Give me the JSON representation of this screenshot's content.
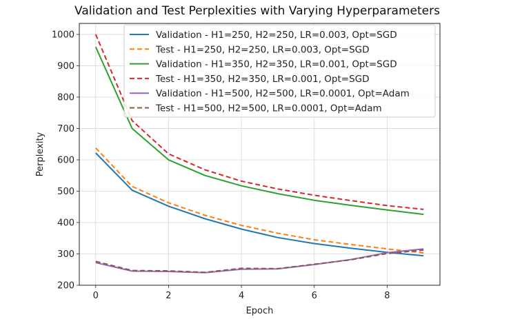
{
  "chart_data": {
    "type": "line",
    "title": "Validation and Test Perplexities with Varying Hyperparameters",
    "xlabel": "Epoch",
    "ylabel": "Perplexity",
    "xlim": [
      -0.45,
      9.45
    ],
    "ylim": [
      200,
      1035
    ],
    "xticks": [
      0,
      2,
      4,
      6,
      8
    ],
    "yticks": [
      200,
      300,
      400,
      500,
      600,
      700,
      800,
      900,
      1000
    ],
    "grid": true,
    "legend_position": "upper-right",
    "x": [
      0,
      1,
      2,
      3,
      4,
      5,
      6,
      7,
      8,
      9
    ],
    "series": [
      {
        "name": "Validation - H1=250, H2=250, LR=0.003, Opt=SGD",
        "color": "#1f77b4",
        "style": "solid",
        "values": [
          622,
          503,
          452,
          412,
          379,
          352,
          333,
          318,
          305,
          294
        ]
      },
      {
        "name": "Test - H1=250, H2=250, LR=0.003, Opt=SGD",
        "color": "#ff7f0e",
        "style": "dashed",
        "values": [
          638,
          515,
          463,
          423,
          391,
          366,
          345,
          330,
          316,
          303
        ]
      },
      {
        "name": "Validation - H1=350, H2=350, LR=0.001, Opt=SGD",
        "color": "#2ca02c",
        "style": "solid",
        "values": [
          960,
          700,
          600,
          550,
          517,
          492,
          471,
          455,
          440,
          426
        ]
      },
      {
        "name": "Test - H1=350, H2=350, LR=0.001, Opt=SGD",
        "color": "#d62728",
        "style": "dashed",
        "values": [
          1000,
          725,
          619,
          568,
          532,
          507,
          487,
          470,
          454,
          442
        ]
      },
      {
        "name": "Validation - H1=500, H2=500, LR=0.0001, Opt=Adam",
        "color": "#9467bd",
        "style": "solid",
        "values": [
          272,
          245,
          244,
          240,
          251,
          252,
          266,
          282,
          304,
          316
        ]
      },
      {
        "name": "Test - H1=500, H2=500, LR=0.0001, Opt=Adam",
        "color": "#8c564b",
        "style": "dashed",
        "values": [
          276,
          247,
          246,
          241,
          254,
          253,
          267,
          281,
          301,
          312
        ]
      }
    ]
  }
}
